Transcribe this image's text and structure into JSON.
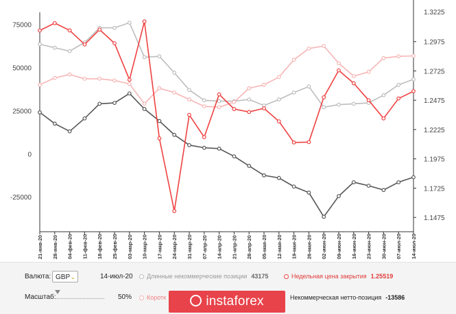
{
  "chart_data": {
    "type": "line",
    "x": [
      "21-янв-20",
      "28-янв-20",
      "04-фев-20",
      "11-фев-20",
      "18-фев-20",
      "25-фев-20",
      "03-мар-20",
      "10-мар-20",
      "17-мар-20",
      "24-мар-20",
      "31-мар-20",
      "07-апр-20",
      "14-апр-20",
      "21-апр-20",
      "28-апр-20",
      "05-мая-20",
      "12-мая-20",
      "19-мая-20",
      "26-мая-20",
      "02-июн-20",
      "09-июн-20",
      "16-июн-20",
      "23-июн-20",
      "30-июн-20",
      "07-июл-20",
      "14-июл-20"
    ],
    "x_tick_labels": [
      "21-янв-20",
      "28-янв-20",
      "04-фев-20",
      "11-фев-20",
      "18-фев-20",
      "25-фев-20",
      "03-мар-20",
      "10-мар-20",
      "17-мар-20",
      "24-мар-20",
      "31-мар-20",
      "07-апр-20",
      "14-апр-20",
      "21-апр-20",
      "28-апр-20",
      "05-мая-20",
      "12-мая-20",
      "19-мая-20",
      "26-мая-20",
      "02-июн-20",
      "09-июн-20",
      "16-июн-20",
      "23-июн-20",
      "30-июн-20",
      "07-июл-20",
      "14-июл-20"
    ],
    "y_left": {
      "ticks": [
        75000,
        50000,
        25000,
        0,
        -25000
      ],
      "tick_labels": [
        "75000",
        "50000",
        "25000",
        "0",
        "-25000"
      ],
      "range": [
        -42000,
        82000
      ]
    },
    "y_right": {
      "ticks": [
        1.2975,
        1.2725,
        1.2475,
        1.2225,
        1.1975,
        1.1725,
        1.1475
      ],
      "tick_labels": [
        "1.2975",
        "1.2725",
        "1.2475",
        "1.2225",
        "1.1975",
        "1.1725",
        "1.1475"
      ],
      "top_partial_label": "1.3225",
      "range": [
        1.14,
        1.3225
      ]
    },
    "grid": false,
    "series": [
      {
        "name": "Длинные некоммерческие позиции",
        "axis": "left",
        "color": "#bdbdbd",
        "values": [
          63500,
          61500,
          59500,
          64500,
          73000,
          73000,
          76000,
          56000,
          56500,
          47000,
          37000,
          31000,
          30500,
          30500,
          31500,
          28000,
          31500,
          35500,
          39000,
          27000,
          28500,
          29000,
          29500,
          34000,
          40000,
          43175
        ]
      },
      {
        "name": "Недельная цена закрытия",
        "axis": "right",
        "color": "#ef4040",
        "values": [
          1.307,
          1.3133,
          1.3071,
          1.2951,
          1.3078,
          1.2961,
          1.265,
          1.3147,
          1.215,
          1.153,
          1.235,
          1.216,
          1.2525,
          1.24,
          1.2375,
          1.2406,
          1.2295,
          1.2115,
          1.2118,
          1.25,
          1.273,
          1.262,
          1.2475,
          1.232,
          1.249,
          1.2552
        ]
      },
      {
        "name": "Короткие некоммерческие позиции",
        "axis": "left",
        "color": "#f7b5b5",
        "values": [
          40000,
          44000,
          46000,
          43500,
          43500,
          42500,
          40500,
          29000,
          38000,
          35500,
          31500,
          27500,
          27000,
          30000,
          38000,
          40000,
          44500,
          54500,
          61000,
          62500,
          52500,
          45000,
          47500,
          55500,
          56500,
          56761
        ]
      },
      {
        "name": "Некоммерческая нетто-позиция",
        "axis": "left",
        "color": "#555555",
        "values": [
          24000,
          17500,
          13000,
          20500,
          29000,
          29500,
          35000,
          26000,
          19000,
          11000,
          5000,
          3500,
          3000,
          -1500,
          -7000,
          -12500,
          -14000,
          -19000,
          -22500,
          -36500,
          -24500,
          -16500,
          -18500,
          -21000,
          -16500,
          -13586
        ]
      }
    ]
  },
  "controls": {
    "currency_label": "Валюта:",
    "currency_value": "GBP",
    "date": "14-июл-20",
    "scale_label": "Масштаб:",
    "scale_value": "50%",
    "legend": {
      "long_label": "Длинные некоммерческие позиции",
      "long_value": "43175",
      "close_label": "Недельная цена закрытия",
      "close_value": "1.25519",
      "short_label": "Коротк",
      "net_label": "Некоммерческая нетто-позиция",
      "net_value": "-13586"
    }
  },
  "logo": {
    "text": "instaforex"
  },
  "colors": {
    "panel_bg": "#f4f4f4",
    "logo_bg": "#e8434a",
    "accent_chevron": "#c8a000"
  }
}
